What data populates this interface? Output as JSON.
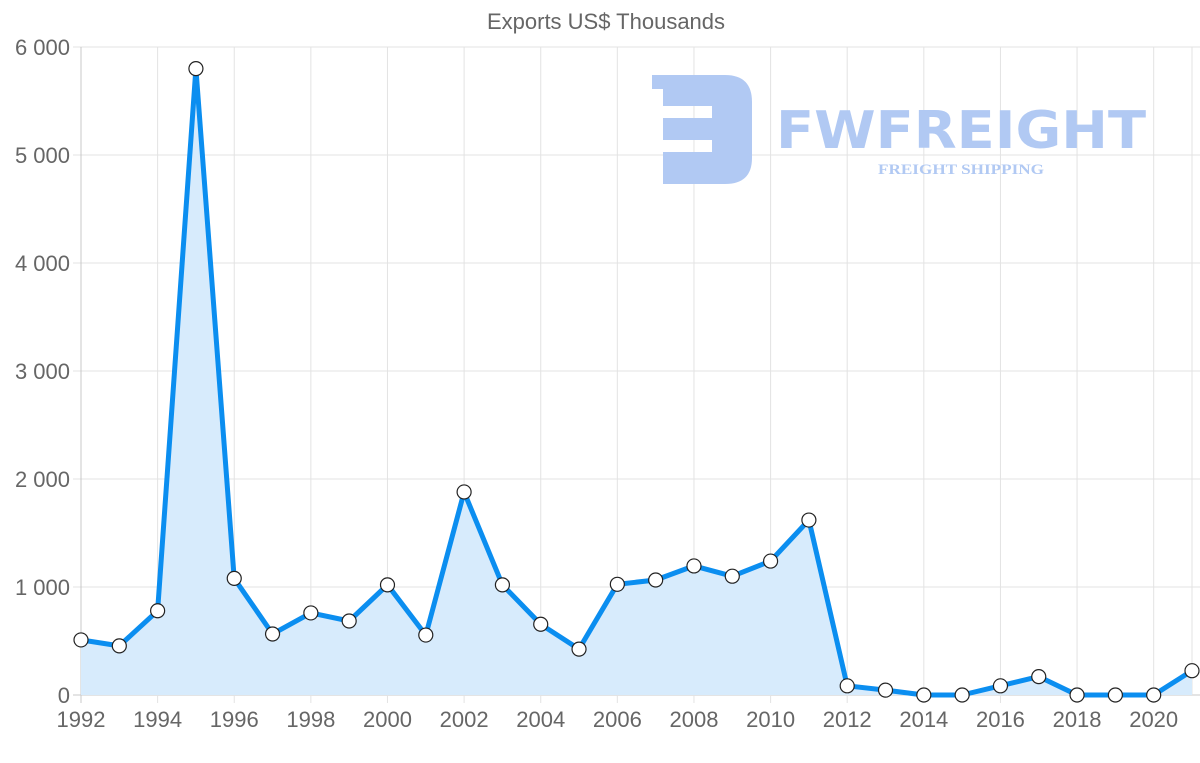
{
  "chart_data": {
    "type": "line",
    "title": "Exports US$ Thousands",
    "xlabel": "",
    "ylabel": "",
    "x": [
      1992,
      1993,
      1994,
      1995,
      1996,
      1997,
      1998,
      1999,
      2000,
      2001,
      2002,
      2003,
      2004,
      2005,
      2006,
      2007,
      2008,
      2009,
      2010,
      2011,
      2012,
      2013,
      2014,
      2015,
      2016,
      2017,
      2018,
      2019,
      2020,
      2021
    ],
    "series": [
      {
        "name": "Exports US$ Thousands",
        "values": [
          510,
          455,
          780,
          5800,
          1080,
          565,
          760,
          685,
          1020,
          555,
          1880,
          1020,
          655,
          425,
          1025,
          1065,
          1195,
          1100,
          1240,
          1620,
          85,
          45,
          0,
          0,
          85,
          170,
          0,
          0,
          0,
          225
        ]
      }
    ],
    "xlim": [
      1992,
      2021
    ],
    "ylim": [
      0,
      6000
    ],
    "yticks": [
      0,
      1000,
      2000,
      3000,
      4000,
      5000,
      6000
    ],
    "ytick_labels": [
      "0",
      "1 000",
      "2 000",
      "3 000",
      "4 000",
      "5 000",
      "6 000"
    ],
    "xtick_labels": [
      "1992",
      "1994",
      "1996",
      "1998",
      "2000",
      "2002",
      "2004",
      "2006",
      "2008",
      "2010",
      "2012",
      "2014",
      "2016",
      "2018",
      "2020"
    ],
    "grid": true,
    "fill": true,
    "line_color": "#0b8ef0",
    "fill_color": "#d7ebfc"
  },
  "watermark": {
    "brand": "FWFREIGHT",
    "tagline": "FREIGHT SHIPPING",
    "color": "#b1c9f3"
  }
}
